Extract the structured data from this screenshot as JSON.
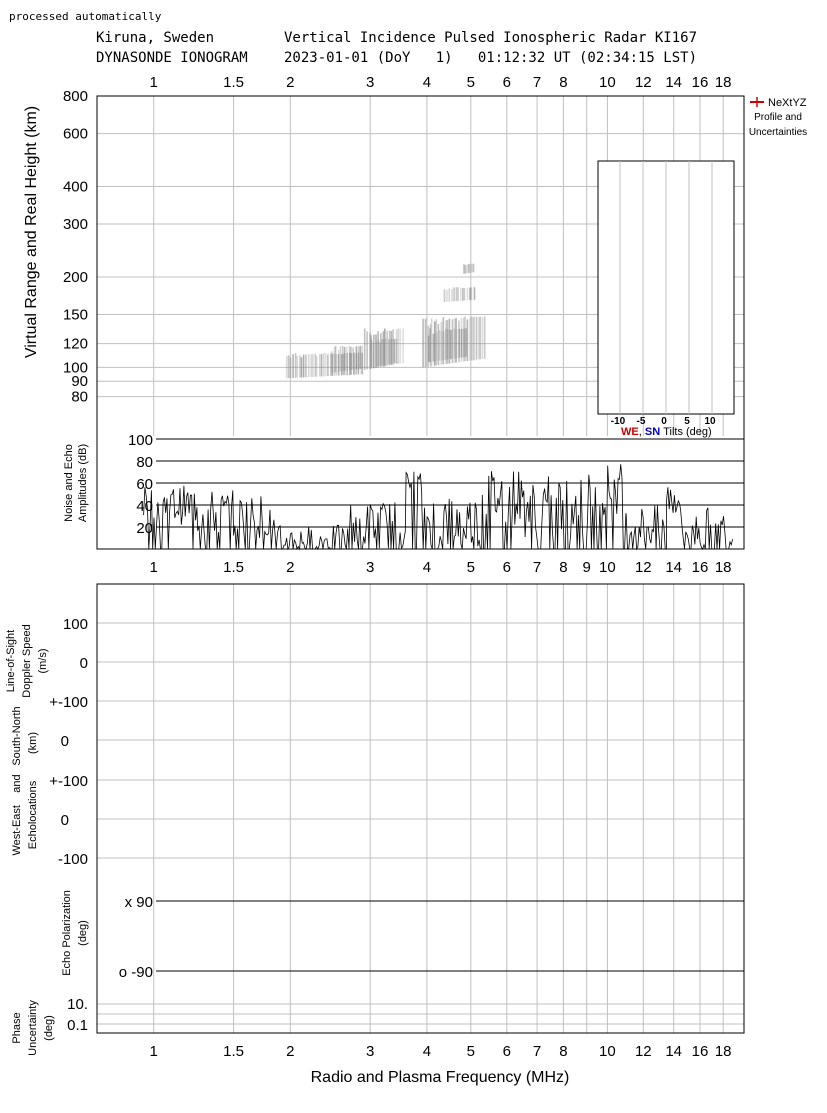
{
  "header": {
    "note": "processed automatically",
    "station": "Kiruna, Sweden",
    "radar_title": "Vertical Incidence Pulsed Ionospheric Radar KI167",
    "product": "DYNASONDE IONOGRAM",
    "datetime": "2023-01-01 (DoY   1)   01:12:32 UT (02:34:15 LST)"
  },
  "colors": {
    "gridline": "#c0c0c0",
    "frame": "#000000",
    "echo": "#8c8c8c",
    "west_east": "#cc0000",
    "south_north": "#0000cc"
  },
  "chart_data": {
    "type": "ionogram",
    "x_axis": {
      "label": "Radio and Plasma Frequency (MHz)",
      "scale": "log",
      "range_mhz": [
        0.75,
        20
      ],
      "gridlines_mhz": [
        1,
        1.5,
        2,
        3,
        4,
        5,
        6,
        7,
        8,
        9,
        10,
        12,
        14,
        16,
        18
      ],
      "top_ticks": [
        "1",
        "1.5",
        "2",
        "3",
        "4",
        "5",
        "6",
        "7",
        "8",
        "10",
        "12",
        "14",
        "16",
        "18"
      ],
      "mid_ticks": [
        "1",
        "1.5",
        "2",
        "3",
        "4",
        "5",
        "6",
        "7",
        "8",
        "9",
        "10",
        "12",
        "14",
        "16",
        "18"
      ],
      "bottom_ticks": [
        "1",
        "1.5",
        "2",
        "3",
        "4",
        "5",
        "6",
        "7",
        "8",
        "10",
        "12",
        "14",
        "16",
        "18"
      ]
    },
    "height_panel": {
      "ylabel": "Virtual Range and Real Height (km)",
      "scale": "log",
      "ylim_km": [
        70,
        800
      ],
      "ticks": [
        "80",
        "90",
        "100",
        "120",
        "150",
        "200",
        "300",
        "400",
        "600",
        "800"
      ],
      "legend": {
        "line1": "NeXtYZ",
        "line2": "Profile and",
        "line3": "Uncertainties"
      },
      "echoes": [
        {
          "f1": 1.95,
          "f2": 2.9,
          "h1": 92,
          "h2": 112
        },
        {
          "f1": 2.45,
          "f2": 2.9,
          "h1": 96,
          "h2": 118
        },
        {
          "f1": 2.9,
          "f2": 3.55,
          "h1": 98,
          "h2": 135
        },
        {
          "f1": 3.0,
          "f2": 3.45,
          "h1": 100,
          "h2": 125
        },
        {
          "f1": 3.9,
          "f2": 5.4,
          "h1": 100,
          "h2": 148
        },
        {
          "f1": 4.0,
          "f2": 4.9,
          "h1": 104,
          "h2": 135
        },
        {
          "f1": 4.35,
          "f2": 5.1,
          "h1": 165,
          "h2": 185
        },
        {
          "f1": 4.8,
          "f2": 5.1,
          "h1": 205,
          "h2": 222
        }
      ],
      "tilts_inset": {
        "ticks": [
          "-10",
          "-5",
          "0",
          "5",
          "10"
        ],
        "label_we": "WE",
        "label_comma": ",",
        "label_sn": "SN",
        "label_tilts": "Tilts (deg)"
      }
    },
    "amplitude_panel": {
      "ylabel_line1": "Noise and Echo",
      "ylabel_line2": "Amplitudes (dB)",
      "ylim_db": [
        0,
        100
      ],
      "ticks": [
        "20",
        "40",
        "60",
        "80",
        "100"
      ],
      "segments": [
        {
          "f1": 0.95,
          "f2": 1.25,
          "level": 40,
          "spread": 18
        },
        {
          "f1": 1.25,
          "f2": 1.5,
          "level": 32,
          "spread": 22
        },
        {
          "f1": 1.5,
          "f2": 1.85,
          "level": 30,
          "spread": 20
        },
        {
          "f1": 1.85,
          "f2": 2.7,
          "level": 8,
          "spread": 14
        },
        {
          "f1": 2.7,
          "f2": 3.6,
          "level": 22,
          "spread": 22
        },
        {
          "f1": 3.6,
          "f2": 3.9,
          "level": 58,
          "spread": 14
        },
        {
          "f1": 3.9,
          "f2": 5.3,
          "level": 25,
          "spread": 26
        },
        {
          "f1": 5.3,
          "f2": 6.5,
          "level": 48,
          "spread": 26
        },
        {
          "f1": 6.5,
          "f2": 9.5,
          "level": 40,
          "spread": 30
        },
        {
          "f1": 9.5,
          "f2": 11.0,
          "level": 55,
          "spread": 24
        },
        {
          "f1": 11.0,
          "f2": 13.5,
          "level": 20,
          "spread": 20
        },
        {
          "f1": 13.5,
          "f2": 14.5,
          "level": 48,
          "spread": 20
        },
        {
          "f1": 14.5,
          "f2": 19.0,
          "level": 18,
          "spread": 20
        }
      ]
    },
    "lower_panel": {
      "doppler_label_line1": "Line-of-Sight",
      "doppler_label_line2": "Doppler Speed",
      "doppler_label_line3": "(m/s)",
      "doppler_ticks": [
        "100",
        "0",
        "+-100"
      ],
      "sn_label_line1": "South-North",
      "sn_label_line2": "(km)",
      "sn_ticks": [
        "0",
        "+-100"
      ],
      "we_label_line1": "West-East    and",
      "we_label_line2": "Echolocations",
      "we_ticks": [
        "0",
        "-100"
      ],
      "pol_label_line1": "Echo Polarization",
      "pol_label_line2": "(deg)",
      "pol_x": "x 90",
      "pol_o": "o -90",
      "phase_label_line1": "Phase",
      "phase_label_line2": "Uncertainty",
      "phase_label_line3": "(deg)",
      "phase_ticks": [
        "10.",
        "0.1"
      ]
    }
  }
}
